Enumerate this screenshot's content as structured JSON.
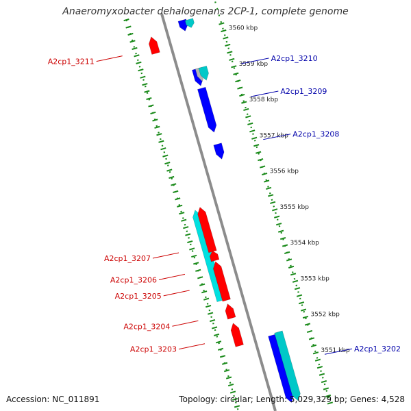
{
  "title": "Anaeromyxobacter dehalogenans 2CP-1, complete genome",
  "footer": {
    "accession": "Accession: NC_011891",
    "summary": "Topology: circular; Length: 5,029,329 bp; Genes: 4,528"
  },
  "colors": {
    "forward_gene": "#ff0000",
    "forward_rna": "#00e0e0",
    "reverse_gene": "#0000ff",
    "reverse_rna": "#00c8c8",
    "pseudo": "#b4b4b4",
    "backbone": "#8c8c8c",
    "tick": "#1a8a1a",
    "forward_label": "#cc0000",
    "reverse_label": "#0000aa"
  },
  "position_labels": [
    {
      "kbp": 3560,
      "text": "3560 kbp"
    },
    {
      "kbp": 3559,
      "text": "3559 kbp"
    },
    {
      "kbp": 3558,
      "text": "3558 kbp"
    },
    {
      "kbp": 3557,
      "text": "3557 kbp"
    },
    {
      "kbp": 3556,
      "text": "3556 kbp"
    },
    {
      "kbp": 3555,
      "text": "3555 kbp"
    },
    {
      "kbp": 3554,
      "text": "3554 kbp"
    },
    {
      "kbp": 3553,
      "text": "3553 kbp"
    },
    {
      "kbp": 3552,
      "text": "3552 kbp"
    },
    {
      "kbp": 3551,
      "text": "3551 kbp"
    }
  ],
  "features": [
    {
      "strand": "reverse",
      "type": "gene",
      "start": 3560.58,
      "end": 3560.28
    },
    {
      "strand": "reverse",
      "type": "rna",
      "start": 3560.55,
      "end": 3560.32
    },
    {
      "strand": "forward",
      "type": "gene",
      "start": 3559.92,
      "end": 3560.38
    },
    {
      "strand": "reverse",
      "type": "gene",
      "start": 3559.22,
      "end": 3558.75
    },
    {
      "strand": "reverse",
      "type": "pseudo",
      "start": 3559.22,
      "end": 3558.85
    },
    {
      "strand": "reverse",
      "type": "rna",
      "start": 3559.22,
      "end": 3558.85
    },
    {
      "strand": "reverse",
      "type": "gene",
      "start": 3558.68,
      "end": 3557.45
    },
    {
      "strand": "reverse",
      "type": "gene",
      "start": 3557.12,
      "end": 3556.7
    },
    {
      "strand": "forward",
      "type": "rna",
      "start": 3553.05,
      "end": 3555.58
    },
    {
      "strand": "forward",
      "type": "gene",
      "start": 3554.38,
      "end": 3555.62
    },
    {
      "strand": "forward",
      "type": "gene",
      "start": 3554.13,
      "end": 3554.4
    },
    {
      "strand": "forward",
      "type": "gene",
      "start": 3553.02,
      "end": 3554.1
    },
    {
      "strand": "forward",
      "type": "gene",
      "start": 3552.52,
      "end": 3552.92
    },
    {
      "strand": "forward",
      "type": "gene",
      "start": 3551.75,
      "end": 3552.38
    },
    {
      "strand": "reverse",
      "type": "gene",
      "start": 3551.78,
      "end": 3549.9
    },
    {
      "strand": "reverse",
      "type": "rna",
      "start": 3551.82,
      "end": 3549.9
    }
  ],
  "gene_labels": [
    {
      "text": "A2cp1_3211",
      "strand": "forward",
      "kbp": 3560.1
    },
    {
      "text": "A2cp1_3210",
      "strand": "reverse",
      "kbp": 3559.02
    },
    {
      "text": "A2cp1_3209",
      "strand": "reverse",
      "kbp": 3558.1
    },
    {
      "text": "A2cp1_3208",
      "strand": "reverse",
      "kbp": 3556.9
    },
    {
      "text": "A2cp1_3207",
      "strand": "forward",
      "kbp": 3554.6
    },
    {
      "text": "A2cp1_3206",
      "strand": "forward",
      "kbp": 3554.0
    },
    {
      "text": "A2cp1_3205",
      "strand": "forward",
      "kbp": 3553.55
    },
    {
      "text": "A2cp1_3204",
      "strand": "forward",
      "kbp": 3552.7
    },
    {
      "text": "A2cp1_3203",
      "strand": "forward",
      "kbp": 3552.06
    },
    {
      "text": "A2cp1_3202",
      "strand": "reverse",
      "kbp": 3550.9
    }
  ]
}
